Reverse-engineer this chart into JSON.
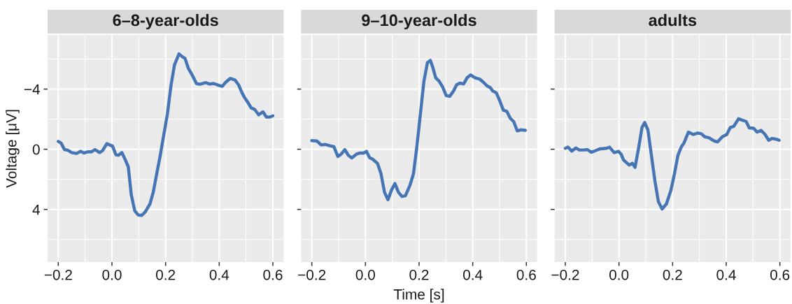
{
  "chart_data": [
    {
      "type": "line",
      "title": "6–8-year-olds",
      "ylabel": "Voltage [μV]",
      "xlim": [
        -0.24,
        0.64
      ],
      "ylim": [
        7.5,
        -7.6
      ],
      "tick_labels": true,
      "xticks": [
        {
          "value": -0.2,
          "label": "−0.2"
        },
        {
          "value": -0.1,
          "label": null
        },
        {
          "value": 0,
          "label": "0.0"
        },
        {
          "value": 0.1,
          "label": null
        },
        {
          "value": 0.2,
          "label": "0.2"
        },
        {
          "value": 0.3,
          "label": null
        },
        {
          "value": 0.4,
          "label": "0.4"
        },
        {
          "value": 0.5,
          "label": null
        },
        {
          "value": 0.6,
          "label": "0.6"
        }
      ],
      "yticks": [
        {
          "value": -6,
          "label": null
        },
        {
          "value": -4,
          "label": "−4"
        },
        {
          "value": -2,
          "label": null
        },
        {
          "value": 0,
          "label": "0"
        },
        {
          "value": 2,
          "label": null
        },
        {
          "value": 4,
          "label": "4"
        },
        {
          "value": 6,
          "label": null
        }
      ],
      "grid": true,
      "series": [
        {
          "color": "#4575b4",
          "x": [
            -0.2,
            -0.189,
            -0.177,
            -0.165,
            -0.15,
            -0.132,
            -0.117,
            -0.104,
            -0.089,
            -0.076,
            -0.063,
            -0.046,
            -0.035,
            -0.019,
            -0.009,
            0.002,
            0.015,
            0.024,
            0.037,
            0.05,
            0.061,
            0.072,
            0.085,
            0.098,
            0.111,
            0.124,
            0.142,
            0.154,
            0.167,
            0.181,
            0.189,
            0.207,
            0.22,
            0.233,
            0.25,
            0.263,
            0.272,
            0.285,
            0.298,
            0.315,
            0.328,
            0.35,
            0.363,
            0.38,
            0.398,
            0.411,
            0.424,
            0.441,
            0.459,
            0.472,
            0.485,
            0.495,
            0.506,
            0.519,
            0.532,
            0.547,
            0.563,
            0.576,
            0.589,
            0.6
          ],
          "values": [
            -0.52,
            -0.4,
            0.02,
            0.06,
            0.22,
            0.28,
            0.14,
            0.25,
            0.17,
            0.17,
            0.02,
            0.22,
            0.09,
            -0.37,
            -0.29,
            -0.22,
            0.37,
            0.4,
            0.22,
            0.71,
            1.17,
            3.02,
            4.09,
            4.37,
            4.4,
            4.17,
            3.63,
            2.86,
            1.63,
            0.32,
            -0.52,
            -2.37,
            -4.22,
            -5.6,
            -6.34,
            -6.14,
            -6.06,
            -5.37,
            -4.98,
            -4.37,
            -4.32,
            -4.43,
            -4.34,
            -4.37,
            -4.25,
            -4.18,
            -4.45,
            -4.71,
            -4.6,
            -4.29,
            -3.75,
            -3.42,
            -3.14,
            -2.75,
            -2.65,
            -2.29,
            -2.49,
            -2.14,
            -2.14,
            -2.22
          ]
        }
      ]
    },
    {
      "type": "line",
      "title": "9–10-year-olds",
      "xlabel": "Time [s]",
      "xlim": [
        -0.24,
        0.64
      ],
      "ylim": [
        7.5,
        -7.6
      ],
      "tick_labels": "x",
      "xticks": [
        {
          "value": -0.2,
          "label": "−0.2"
        },
        {
          "value": -0.1,
          "label": null
        },
        {
          "value": 0,
          "label": "0.0"
        },
        {
          "value": 0.1,
          "label": null
        },
        {
          "value": 0.2,
          "label": "0.2"
        },
        {
          "value": 0.3,
          "label": null
        },
        {
          "value": 0.4,
          "label": "0.4"
        },
        {
          "value": 0.5,
          "label": null
        },
        {
          "value": 0.6,
          "label": "0.6"
        }
      ],
      "yticks": [
        {
          "value": -6,
          "label": null
        },
        -4,
        {
          "value": -2,
          "label": null
        },
        0,
        {
          "value": 2,
          "label": null
        },
        4,
        {
          "value": 6,
          "label": null
        }
      ],
      "grid": true,
      "series": [
        {
          "color": "#4575b4",
          "x": [
            -0.2,
            -0.181,
            -0.165,
            -0.151,
            -0.129,
            -0.118,
            -0.103,
            -0.09,
            -0.077,
            -0.064,
            -0.051,
            -0.033,
            -0.02,
            -0.007,
            0.004,
            0.015,
            0.027,
            0.045,
            0.058,
            0.071,
            0.084,
            0.097,
            0.11,
            0.123,
            0.136,
            0.149,
            0.166,
            0.179,
            0.192,
            0.205,
            0.218,
            0.231,
            0.242,
            0.251,
            0.262,
            0.275,
            0.288,
            0.301,
            0.314,
            0.327,
            0.34,
            0.353,
            0.366,
            0.379,
            0.392,
            0.409,
            0.427,
            0.44,
            0.453,
            0.466,
            0.474,
            0.488,
            0.501,
            0.514,
            0.527,
            0.54,
            0.553,
            0.566,
            0.579,
            0.596
          ],
          "values": [
            -0.57,
            -0.55,
            -0.29,
            -0.32,
            -0.22,
            -0.18,
            0.48,
            0.32,
            0.02,
            0.4,
            0.58,
            0.32,
            0.25,
            0.25,
            0.14,
            0.55,
            0.66,
            0.94,
            1.63,
            2.86,
            3.35,
            2.71,
            2.28,
            2.86,
            3.14,
            3.09,
            2.4,
            1.63,
            -0.22,
            -2.37,
            -4.52,
            -5.75,
            -5.91,
            -5.45,
            -4.75,
            -4.52,
            -4.14,
            -3.57,
            -3.52,
            -3.83,
            -4.29,
            -4.4,
            -4.34,
            -4.75,
            -4.94,
            -4.75,
            -4.65,
            -4.45,
            -4.22,
            -4.09,
            -3.88,
            -3.75,
            -3.22,
            -2.6,
            -2.52,
            -2.06,
            -1.83,
            -1.22,
            -1.29,
            -1.26
          ]
        }
      ]
    },
    {
      "type": "line",
      "title": "adults",
      "xlim": [
        -0.24,
        0.64
      ],
      "ylim": [
        7.5,
        -7.6
      ],
      "tick_labels": "x",
      "xticks": [
        {
          "value": -0.2,
          "label": "−0.2"
        },
        {
          "value": -0.1,
          "label": null
        },
        {
          "value": 0,
          "label": "0.0"
        },
        {
          "value": 0.1,
          "label": null
        },
        {
          "value": 0.2,
          "label": "0.2"
        },
        {
          "value": 0.3,
          "label": null
        },
        {
          "value": 0.4,
          "label": "0.4"
        },
        {
          "value": 0.5,
          "label": null
        },
        {
          "value": 0.6,
          "label": "0.6"
        }
      ],
      "yticks": [
        {
          "value": -6,
          "label": null
        },
        -4,
        {
          "value": -2,
          "label": null
        },
        0,
        {
          "value": 2,
          "label": null
        },
        4,
        {
          "value": 6,
          "label": null
        }
      ],
      "grid": true,
      "series": [
        {
          "color": "#4575b4",
          "x": [
            -0.2,
            -0.19,
            -0.176,
            -0.161,
            -0.148,
            -0.131,
            -0.118,
            -0.103,
            -0.087,
            -0.07,
            -0.048,
            -0.035,
            -0.018,
            -0.002,
            0.008,
            0.017,
            0.038,
            0.05,
            0.06,
            0.073,
            0.086,
            0.096,
            0.108,
            0.121,
            0.134,
            0.147,
            0.161,
            0.177,
            0.194,
            0.207,
            0.22,
            0.233,
            0.242,
            0.259,
            0.277,
            0.294,
            0.307,
            0.32,
            0.337,
            0.355,
            0.368,
            0.385,
            0.402,
            0.415,
            0.428,
            0.446,
            0.459,
            0.474,
            0.486,
            0.502,
            0.515,
            0.53,
            0.545,
            0.558,
            0.571,
            0.584,
            0.597
          ],
          "values": [
            -0.06,
            -0.14,
            0.12,
            -0.09,
            0.05,
            0.05,
            0.02,
            0.2,
            0.09,
            -0.03,
            -0.06,
            -0.14,
            0.22,
            0.14,
            0.32,
            0.71,
            1.05,
            0.94,
            1.2,
            -0.06,
            -1.45,
            -1.78,
            -1.29,
            0.4,
            2.09,
            3.48,
            3.97,
            3.63,
            2.71,
            1.63,
            0.4,
            -0.18,
            -0.4,
            -1.14,
            -0.98,
            -1.08,
            -1.03,
            -0.83,
            -0.75,
            -0.55,
            -0.49,
            -0.83,
            -0.98,
            -1.45,
            -1.52,
            -2.03,
            -1.94,
            -1.85,
            -1.42,
            -1.4,
            -1.14,
            -1.26,
            -0.98,
            -0.6,
            -0.72,
            -0.68,
            -0.6
          ]
        }
      ]
    }
  ]
}
